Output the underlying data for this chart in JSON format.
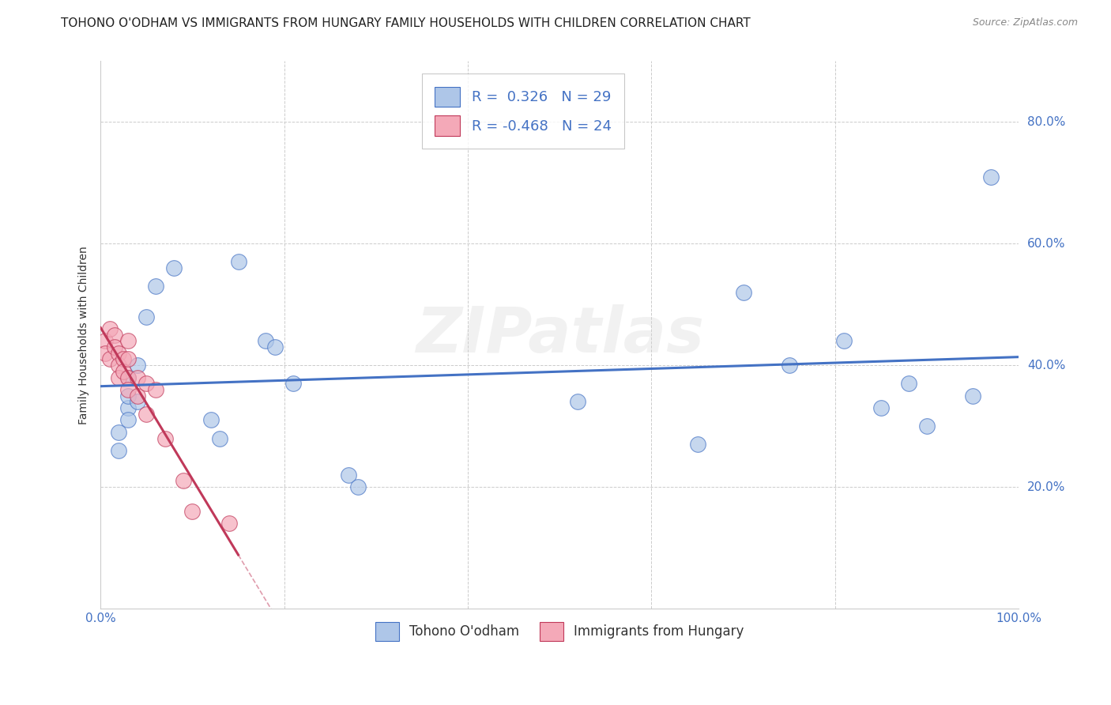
{
  "title": "TOHONO O'ODHAM VS IMMIGRANTS FROM HUNGARY FAMILY HOUSEHOLDS WITH CHILDREN CORRELATION CHART",
  "source": "Source: ZipAtlas.com",
  "ylabel": "Family Households with Children",
  "xlabel": "",
  "xlim": [
    0,
    1.0
  ],
  "ylim": [
    0,
    0.9
  ],
  "yticks": [
    0.2,
    0.4,
    0.6,
    0.8
  ],
  "ytick_labels": [
    "20.0%",
    "40.0%",
    "60.0%",
    "80.0%"
  ],
  "xticks": [
    0.0,
    0.2,
    0.4,
    0.6,
    0.8,
    1.0
  ],
  "xtick_labels": [
    "0.0%",
    "",
    "",
    "",
    "",
    "100.0%"
  ],
  "legend1_color": "#aec6e8",
  "legend2_color": "#f4a9b8",
  "line1_color": "#4472c4",
  "line2_color": "#c0395a",
  "watermark": "ZIPatlas",
  "legend_entries": [
    "Tohono O'odham",
    "Immigrants from Hungary"
  ],
  "blue_r": 0.326,
  "blue_n": 29,
  "pink_r": -0.468,
  "pink_n": 24,
  "blue_points_x": [
    0.02,
    0.02,
    0.03,
    0.03,
    0.03,
    0.03,
    0.04,
    0.04,
    0.05,
    0.06,
    0.08,
    0.12,
    0.13,
    0.15,
    0.18,
    0.19,
    0.21,
    0.27,
    0.28,
    0.52,
    0.65,
    0.7,
    0.75,
    0.81,
    0.85,
    0.88,
    0.9,
    0.95,
    0.97
  ],
  "blue_points_y": [
    0.29,
    0.26,
    0.33,
    0.31,
    0.35,
    0.38,
    0.4,
    0.34,
    0.48,
    0.53,
    0.56,
    0.31,
    0.28,
    0.57,
    0.44,
    0.43,
    0.37,
    0.22,
    0.2,
    0.34,
    0.27,
    0.52,
    0.4,
    0.44,
    0.33,
    0.37,
    0.3,
    0.35,
    0.71
  ],
  "pink_points_x": [
    0.005,
    0.005,
    0.01,
    0.01,
    0.015,
    0.015,
    0.02,
    0.02,
    0.02,
    0.025,
    0.025,
    0.03,
    0.03,
    0.03,
    0.03,
    0.04,
    0.04,
    0.05,
    0.05,
    0.06,
    0.07,
    0.09,
    0.1,
    0.14
  ],
  "pink_points_y": [
    0.44,
    0.42,
    0.46,
    0.41,
    0.45,
    0.43,
    0.42,
    0.4,
    0.38,
    0.41,
    0.39,
    0.44,
    0.41,
    0.38,
    0.36,
    0.38,
    0.35,
    0.37,
    0.32,
    0.36,
    0.28,
    0.21,
    0.16,
    0.14
  ],
  "background_color": "#ffffff",
  "grid_color": "#cccccc",
  "title_fontsize": 11,
  "axis_fontsize": 10,
  "tick_fontsize": 11
}
